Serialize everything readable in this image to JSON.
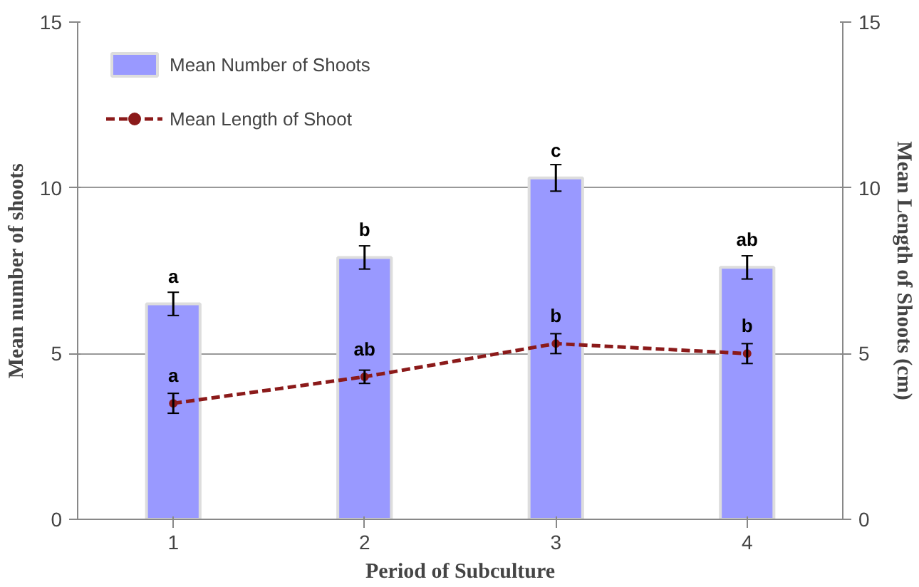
{
  "chart_data": {
    "type": "bar",
    "xlabel": "Period of Subculture",
    "ylabel": "Mean number of shoots",
    "y2label": "Mean Length of Shoots (cm)",
    "categories": [
      "1",
      "2",
      "3",
      "4"
    ],
    "series": [
      {
        "name": "Mean Number of Shoots",
        "color": "#9999ff",
        "values": [
          6.5,
          7.9,
          10.3,
          7.6
        ],
        "errors": [
          0.35,
          0.35,
          0.4,
          0.35
        ]
      },
      {
        "name": "Mean Length of Shoot",
        "type": "line",
        "axis": "y2",
        "color": "#8b1a1a",
        "values": [
          3.5,
          4.3,
          5.3,
          5.0
        ],
        "errors": [
          0.3,
          0.2,
          0.3,
          0.3
        ],
        "marker": "circle",
        "line_style": "dashed"
      }
    ],
    "ylim": [
      0,
      15
    ],
    "yticks": [
      0,
      5,
      10,
      15
    ],
    "y2lim": [
      0,
      15
    ],
    "y2ticks": [
      0,
      5,
      10,
      15
    ],
    "grid": "y",
    "legend": "top left",
    "annotations": [
      {
        "text": "a",
        "x": "1",
        "y": 6.5
      },
      {
        "text": "b",
        "x": "2",
        "y": 7.9
      },
      {
        "text": "c",
        "x": "3",
        "y": 10.3
      },
      {
        "text": "ab",
        "x": "4",
        "y": 7.6
      },
      {
        "text": "a",
        "x": "1",
        "y": 3.5
      },
      {
        "text": "ab",
        "x": "2",
        "y": 4.3
      },
      {
        "text": "b",
        "x": "3",
        "y": 5.3
      },
      {
        "text": "b",
        "x": "4",
        "y": 5.0
      }
    ]
  }
}
